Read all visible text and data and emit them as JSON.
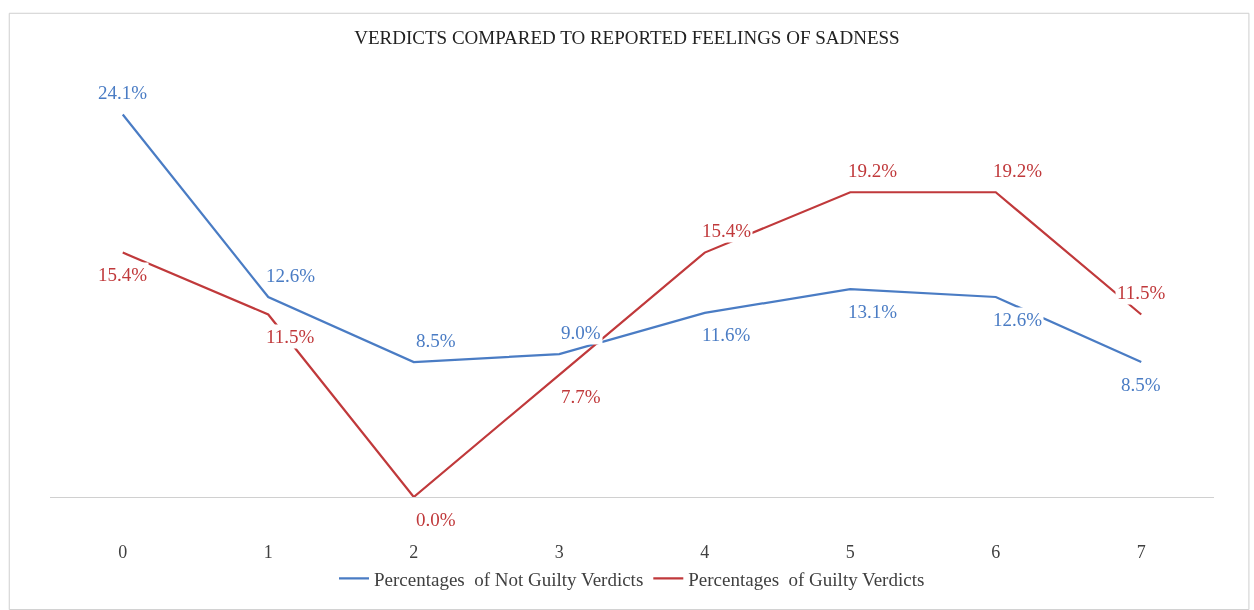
{
  "chart_data": {
    "type": "line",
    "title": "VERDICTS COMPARED TO REPORTED FEELINGS OF SADNESS",
    "categories": [
      "0",
      "1",
      "2",
      "3",
      "4",
      "5",
      "6",
      "7"
    ],
    "series": [
      {
        "name": "Percentages  of Not Guilty Verdicts",
        "color": "#4a7cc4",
        "values": [
          24.1,
          12.6,
          8.5,
          9.0,
          11.6,
          13.1,
          12.6,
          8.5
        ],
        "value_labels": [
          "24.1%",
          "12.6%",
          "8.5%",
          "9.0%",
          "11.6%",
          "13.1%",
          "12.6%",
          "8.5%"
        ]
      },
      {
        "name": "Percentages  of Guilty Verdicts",
        "color": "#c0393b",
        "values": [
          15.4,
          11.5,
          0.0,
          7.7,
          15.4,
          19.2,
          19.2,
          11.5
        ],
        "value_labels": [
          "15.4%",
          "11.5%",
          "0.0%",
          "7.7%",
          "15.4%",
          "19.2%",
          "19.2%",
          "11.5%"
        ]
      }
    ],
    "legend": "bottom",
    "marker": "none",
    "line_style": "solid"
  }
}
